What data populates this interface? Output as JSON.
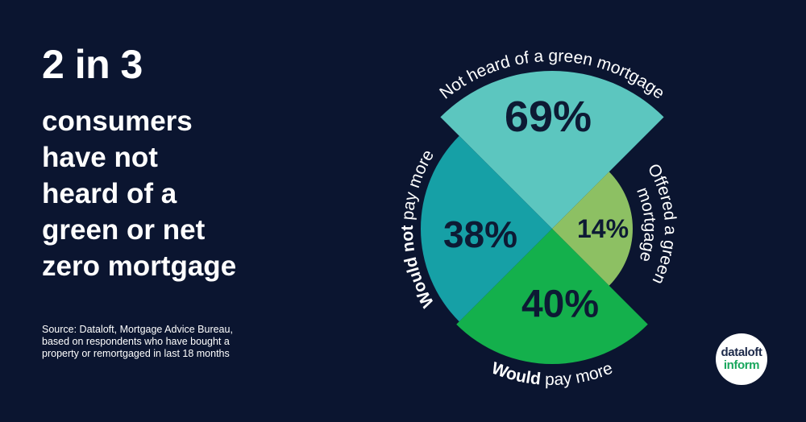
{
  "headline": "2 in 3",
  "subhead_lines": [
    "consumers",
    "have not",
    "heard of a",
    "green or net",
    "zero mortgage"
  ],
  "source_lines": [
    "Source: Dataloft, Mortgage Advice Bureau,",
    "based on respondents who have bought a",
    "property or remortgaged in last 18 months"
  ],
  "logo": {
    "line1": "dataloft",
    "line2": "inform"
  },
  "colors": {
    "background": "#0b1530",
    "not_heard": "#5cc6bf",
    "offered": "#8dc063",
    "would_pay": "#14b04c",
    "would_not_pay": "#16a0a6",
    "value_text": "#0d1a34"
  },
  "chart_data": {
    "type": "pie",
    "variant": "polar-area",
    "series": [
      {
        "id": "not_heard",
        "label": "Not heard of a green mortgage",
        "label_bold": "",
        "label_rest": "Not heard of a green mortgage",
        "value": 69,
        "display": "69%"
      },
      {
        "id": "offered",
        "label": "Offered a green mortgage",
        "label_bold": "",
        "label_rest": "",
        "label_lines": [
          "Offered a green",
          "mortgage"
        ],
        "value": 14,
        "display": "14%"
      },
      {
        "id": "would_pay",
        "label": "Would pay more",
        "label_bold": "Would",
        "label_rest": " pay more",
        "value": 40,
        "display": "40%"
      },
      {
        "id": "would_not_pay",
        "label": "Would not pay more",
        "label_bold": "Would not",
        "label_rest": " pay more",
        "value": 38,
        "display": "38%"
      }
    ]
  }
}
